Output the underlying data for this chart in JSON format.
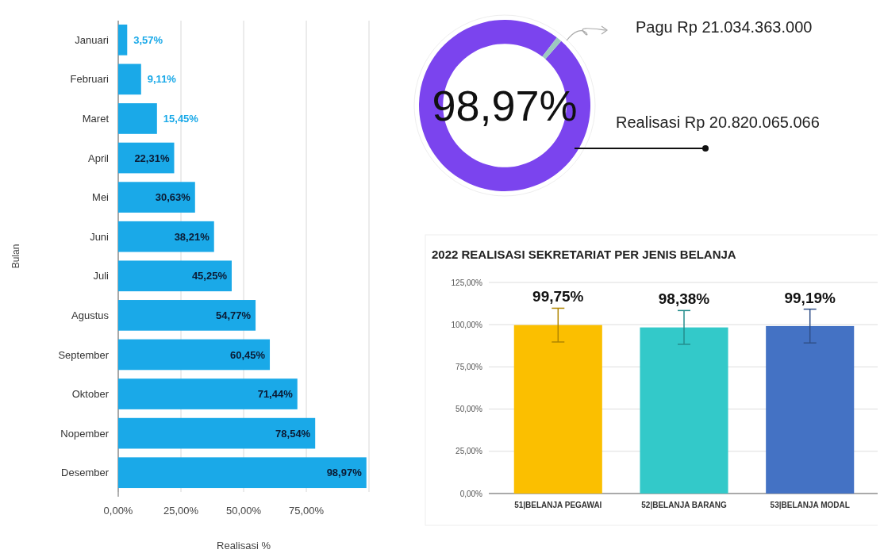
{
  "chart_data": [
    {
      "type": "bar",
      "orientation": "horizontal",
      "ylabel": "Bulan",
      "xlabel": "Realisasi %",
      "color": "#1aa9e8",
      "grid": "x",
      "categories": [
        "Januari",
        "Februari",
        "Maret",
        "April",
        "Mei",
        "Juni",
        "Juli",
        "Agustus",
        "September",
        "Oktober",
        "Nopember",
        "Desember"
      ],
      "values": [
        3.57,
        9.11,
        15.45,
        22.31,
        30.63,
        38.21,
        45.25,
        54.77,
        60.45,
        71.44,
        78.54,
        98.97
      ],
      "value_labels": [
        "3,57%",
        "9,11%",
        "15,45%",
        "22,31%",
        "30,63%",
        "38,21%",
        "45,25%",
        "54,77%",
        "60,45%",
        "71,44%",
        "78,54%",
        "98,97%"
      ],
      "xlim": [
        0,
        100
      ],
      "xticks": [
        {
          "value": 0,
          "label": "0,00%"
        },
        {
          "value": 25,
          "label": "25,00%"
        },
        {
          "value": 50,
          "label": "50,00%"
        },
        {
          "value": 75,
          "label": "75,00%"
        },
        {
          "value": 100,
          "label": null
        }
      ]
    },
    {
      "type": "donut",
      "categories": [
        null,
        null
      ],
      "values": [
        98.97,
        1.03
      ],
      "colors": [
        "#7b44ee",
        "#9cc9bf"
      ],
      "annotations": [
        "98,97%",
        "Pagu Rp 21.034.363.000",
        "Realisasi Rp 20.820.065.066"
      ]
    },
    {
      "type": "bar",
      "title": "2022 REALISASI SEKRETARIAT PER JENIS BELANJA",
      "grid": "y",
      "categories": [
        "51|BELANJA PEGAWAI",
        "52|BELANJA BARANG",
        "53|BELANJA MODAL"
      ],
      "values": [
        99.75,
        98.38,
        99.19
      ],
      "colors": [
        "#fbbf00",
        "#33c9c9",
        "#4472c4"
      ],
      "errors": [
        10,
        10,
        10
      ],
      "value_labels": [
        "99,75%",
        "98,38%",
        "99,19%"
      ],
      "ylim": [
        0,
        125
      ],
      "yticks": [
        {
          "value": 0,
          "label": "0,00%"
        },
        {
          "value": 25,
          "label": "25,00%"
        },
        {
          "value": 50,
          "label": "50,00%"
        },
        {
          "value": 75,
          "label": "75,00%"
        },
        {
          "value": 100,
          "label": "100,00%"
        },
        {
          "value": 125,
          "label": "125,00%"
        }
      ]
    }
  ]
}
